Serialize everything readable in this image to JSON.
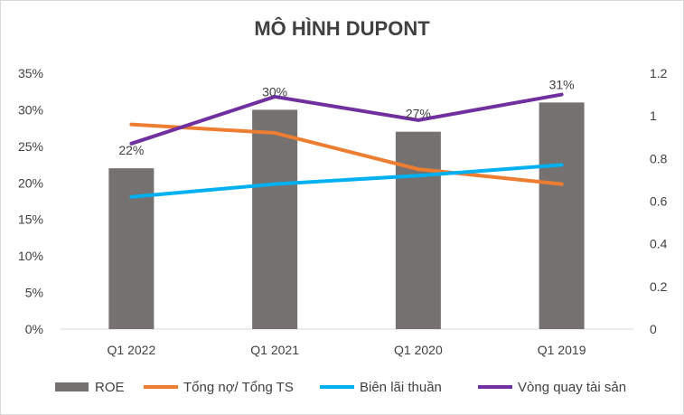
{
  "chart_data": {
    "type": "bar",
    "title": "MÔ HÌNH DUPONT",
    "categories": [
      "Q1 2022",
      "Q1 2021",
      "Q1 2020",
      "Q1 2019"
    ],
    "y_left": {
      "ticks": [
        "0%",
        "5%",
        "10%",
        "15%",
        "20%",
        "25%",
        "30%",
        "35%"
      ],
      "range": [
        0,
        0.35
      ]
    },
    "y_right": {
      "ticks": [
        "0",
        "0.2",
        "0.4",
        "0.6",
        "0.8",
        "1",
        "1.2"
      ],
      "range": [
        0,
        1.2
      ]
    },
    "series": [
      {
        "name": "ROE",
        "kind": "bar",
        "axis": "left",
        "color": "#767171",
        "values": [
          0.22,
          0.3,
          0.27,
          0.31
        ],
        "data_labels": [
          "22%",
          "30%",
          "27%",
          "31%"
        ]
      },
      {
        "name": "Tổng nợ/ Tổng TS",
        "kind": "line",
        "axis": "right",
        "color": "#ed7d31",
        "values": [
          0.96,
          0.92,
          0.75,
          0.68
        ]
      },
      {
        "name": "Biên lãi thuần",
        "kind": "line",
        "axis": "right",
        "color": "#00b0f0",
        "values": [
          0.62,
          0.68,
          0.72,
          0.77
        ]
      },
      {
        "name": "Vòng quay tài sản",
        "kind": "line",
        "axis": "right",
        "color": "#7030a0",
        "values": [
          0.87,
          1.09,
          0.98,
          1.1
        ]
      }
    ],
    "grid": false,
    "legend_position": "bottom"
  }
}
